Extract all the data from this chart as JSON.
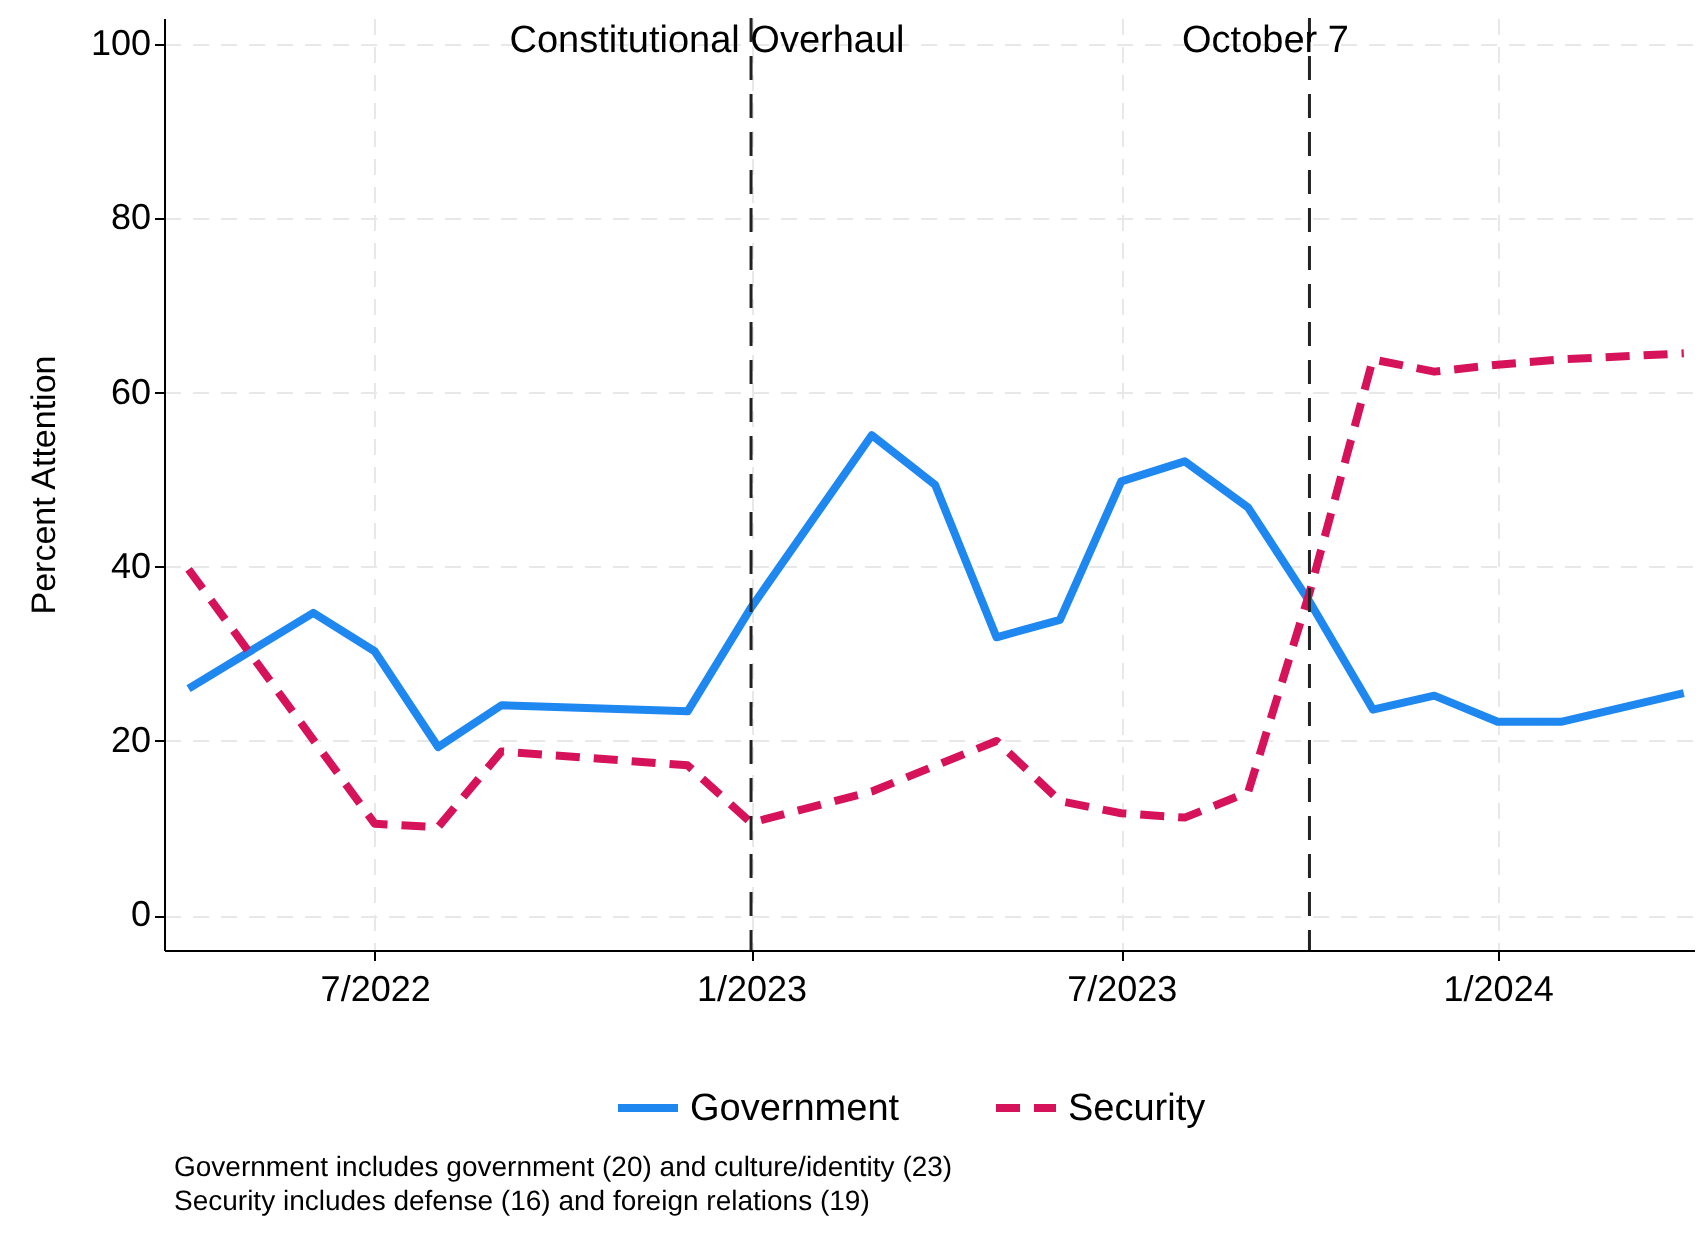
{
  "chart_data": {
    "type": "line",
    "ylabel": "Percent Attention",
    "xlim": [
      "2022-03-20",
      "2024-04-06"
    ],
    "xticks": [
      {
        "value": "2022-07",
        "label": "7/2022"
      },
      {
        "value": "2023-01",
        "label": "1/2023"
      },
      {
        "value": "2023-07",
        "label": "7/2023"
      },
      {
        "value": "2024-01",
        "label": "1/2024"
      }
    ],
    "ylim": [
      -4,
      103
    ],
    "yticks": [
      0,
      20,
      40,
      60,
      80,
      100
    ],
    "series": [
      {
        "name": "Government",
        "color": "#1e88f0",
        "line_style": "solid",
        "x": [
          "2022-04",
          "2022-06",
          "2022-07",
          "2022-08",
          "2022-09",
          "2022-12",
          "2023-01",
          "2023-03",
          "2023-04",
          "2023-05",
          "2023-06",
          "2023-07",
          "2023-08",
          "2023-09",
          "2023-10",
          "2023-11",
          "2023-12",
          "2024-01",
          "2024-02",
          "2024-04"
        ],
        "values": [
          26,
          34.7,
          30.3,
          19.3,
          24.1,
          23.4,
          35.3,
          55.1,
          49.4,
          31.9,
          33.9,
          49.8,
          52.1,
          46.8,
          36,
          23.6,
          25.2,
          22.2,
          22.2,
          25.5
        ]
      },
      {
        "name": "Security",
        "color": "#d6135a",
        "line_style": "dashed",
        "x": [
          "2022-04",
          "2022-07",
          "2022-08",
          "2022-09",
          "2022-12",
          "2023-01",
          "2023-03",
          "2023-05",
          "2023-06",
          "2023-07",
          "2023-08",
          "2023-09",
          "2023-10",
          "2023-11",
          "2023-12",
          "2024-01",
          "2024-02",
          "2024-04"
        ],
        "values": [
          39.7,
          10.5,
          10.1,
          18.8,
          17.2,
          10.6,
          14.2,
          20.0,
          13.1,
          11.7,
          11.2,
          14.1,
          37,
          63.8,
          62.4,
          63.2,
          63.8,
          64.5
        ]
      }
    ],
    "ref_lines": [
      {
        "axis": "x",
        "value": "2023-01",
        "label": "Constitutional Overhaul",
        "color": "#222222",
        "line_style": "dashed"
      },
      {
        "axis": "x",
        "value": "2023-10",
        "label": "October 7",
        "color": "#222222",
        "line_style": "dashed"
      }
    ],
    "grid": true,
    "legend": "bottom",
    "marker": "none",
    "annotations": [
      "Government includes government (20) and culture/identity (23)",
      "Security includes defense (16) and foreign relations (19)"
    ]
  }
}
